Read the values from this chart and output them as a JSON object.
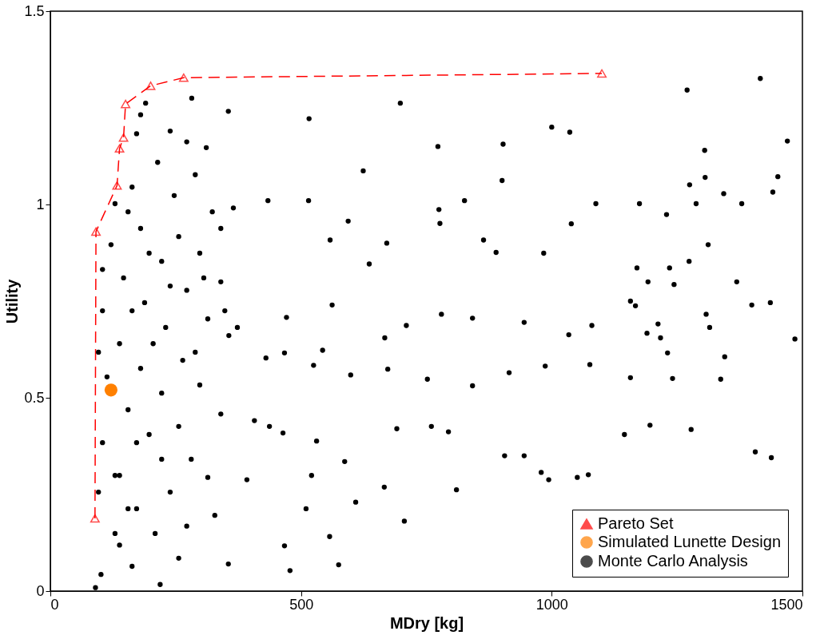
{
  "chart_data": {
    "type": "scatter",
    "xlabel": "MDry [kg]",
    "ylabel": "Utility",
    "xlim": [
      0,
      1500
    ],
    "xticks": [
      0,
      500,
      1000,
      1500
    ],
    "ylim": [
      0,
      1.5
    ],
    "yticks": [
      0,
      0.5,
      1,
      1.5
    ],
    "grid": false,
    "legend": "bottom right",
    "series": [
      {
        "name": "Pareto Set",
        "type": "line",
        "color": "#ff0000",
        "marker": "triangle",
        "line_style": "dashed",
        "x": [
          89,
          91,
          133,
          138,
          146,
          150,
          200,
          266,
          1100
        ],
        "values": [
          0.188,
          0.93,
          1.049,
          1.145,
          1.173,
          1.26,
          1.307,
          1.328,
          1.339
        ]
      },
      {
        "name": "Simulated Lunette Design",
        "color": "#ff8000",
        "marker": "circle",
        "x": [
          121
        ],
        "values": [
          0.52
        ]
      },
      {
        "name": "Monte Carlo Analysis",
        "color": "#000000",
        "marker": "circle",
        "x": [
          1416,
          1270,
          516,
          698,
          355,
          1000,
          773,
          1305,
          1036,
          1470,
          903,
          1306,
          1451,
          1441,
          1343,
          1379,
          1275,
          1288,
          1229,
          1175,
          1088,
          1039,
          901,
          826,
          775,
          594,
          515,
          434,
          624,
          671,
          777,
          558,
          636,
          864,
          889,
          984,
          1170,
          1235,
          1274,
          1192,
          1244,
          1399,
          1436,
          1312,
          1369,
          1485,
          1308,
          1315,
          1212,
          1190,
          1167,
          1157,
          1080,
          1034,
          945,
          842,
          780,
          710,
          667,
          562,
          471,
          543,
          430,
          525,
          599,
          673,
          752,
          842,
          915,
          987,
          1076,
          1157,
          1241,
          1231,
          1217,
          1337,
          1345,
          1196,
          1278,
          1145,
          1073,
          979,
          906,
          760,
          794,
          691,
          587,
          521,
          464,
          437,
          467,
          478,
          575,
          355,
          1406,
          1438,
          531,
          609,
          706,
          810,
          945,
          557,
          666,
          994,
          1051,
          510,
          392,
          467,
          407,
          90,
          101,
          219,
          163,
          129,
          209,
          272,
          328,
          314,
          172,
          239,
          138,
          281,
          104,
          197,
          256,
          340,
          155,
          222,
          298,
          113,
          180,
          264,
          356,
          138,
          230,
          314,
          104,
          188,
          272,
          340,
          146,
          222,
          298,
          121,
          256,
          180,
          365,
          323,
          247,
          163,
          289,
          214,
          272,
          172,
          239,
          190,
          180,
          282,
          311,
          129,
          138,
          172,
          96,
          96,
          205,
          289,
          163,
          239,
          306,
          104,
          197,
          155,
          340,
          129,
          222,
          155,
          256,
          348,
          373
        ],
        "values": [
          1.326,
          1.296,
          1.222,
          1.262,
          1.241,
          1.2,
          1.15,
          1.14,
          1.187,
          1.164,
          1.156,
          1.07,
          1.072,
          1.032,
          1.028,
          1.002,
          1.051,
          1.002,
          0.974,
          1.002,
          1.002,
          0.95,
          1.062,
          1.01,
          0.987,
          0.957,
          1.01,
          1.01,
          1.087,
          0.9,
          0.951,
          0.908,
          0.846,
          0.908,
          0.876,
          0.874,
          0.836,
          0.836,
          0.853,
          0.8,
          0.793,
          0.74,
          0.746,
          0.896,
          0.8,
          0.652,
          0.716,
          0.682,
          0.691,
          0.667,
          0.738,
          0.75,
          0.687,
          0.663,
          0.695,
          0.706,
          0.716,
          0.687,
          0.655,
          0.74,
          0.708,
          0.623,
          0.603,
          0.584,
          0.559,
          0.574,
          0.548,
          0.531,
          0.565,
          0.582,
          0.586,
          0.552,
          0.55,
          0.616,
          0.655,
          0.548,
          0.606,
          0.429,
          0.418,
          0.405,
          0.301,
          0.307,
          0.35,
          0.426,
          0.412,
          0.42,
          0.335,
          0.299,
          0.409,
          0.426,
          0.117,
          0.053,
          0.068,
          0.07,
          0.36,
          0.345,
          0.388,
          0.23,
          0.181,
          0.262,
          0.35,
          0.141,
          0.269,
          0.288,
          0.294,
          0.213,
          0.288,
          0.616,
          0.441,
          0.009,
          0.043,
          0.017,
          0.064,
          0.149,
          0.149,
          0.168,
          0.196,
          0.294,
          0.213,
          0.256,
          0.299,
          0.341,
          0.384,
          0.405,
          0.426,
          0.458,
          0.469,
          0.512,
          0.533,
          0.554,
          0.576,
          0.597,
          0.661,
          0.64,
          0.682,
          0.704,
          0.725,
          0.746,
          0.778,
          0.8,
          0.81,
          0.853,
          0.874,
          0.896,
          0.917,
          0.938,
          0.991,
          0.981,
          1.023,
          1.045,
          1.077,
          1.109,
          1.162,
          1.183,
          1.19,
          1.262,
          1.232,
          1.275,
          1.147,
          0.299,
          0.119,
          0.384,
          0.618,
          0.256,
          0.64,
          0.618,
          0.725,
          0.789,
          0.81,
          0.832,
          0.874,
          0.981,
          0.938,
          1.002,
          0.341,
          0.213,
          0.085,
          0.725,
          0.682
        ]
      }
    ]
  }
}
